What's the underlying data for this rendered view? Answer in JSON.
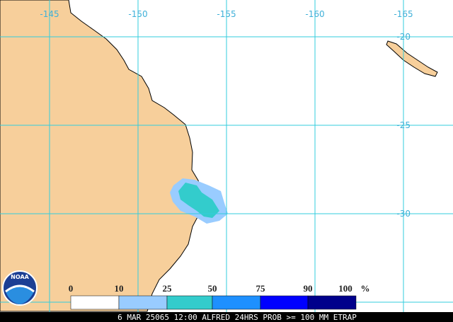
{
  "map": {
    "longitude_labels": [
      "-145",
      "-150",
      "-155",
      "-160",
      "-165"
    ],
    "latitude_labels": [
      "-20",
      "-25",
      "-30"
    ],
    "legend": {
      "labels": [
        "0",
        "10",
        "25",
        "50",
        "75",
        "90",
        "100"
      ],
      "unit": "%",
      "colors": [
        "#ffffff",
        "#99ccff",
        "#33cccc",
        "#1e90ff",
        "#0000ff",
        "#00008b"
      ]
    },
    "logo": "NOAA",
    "footer": "6 MAR 25065 12:00 ALFRED 24HRS PROB >= 100 MM ETRAP"
  }
}
